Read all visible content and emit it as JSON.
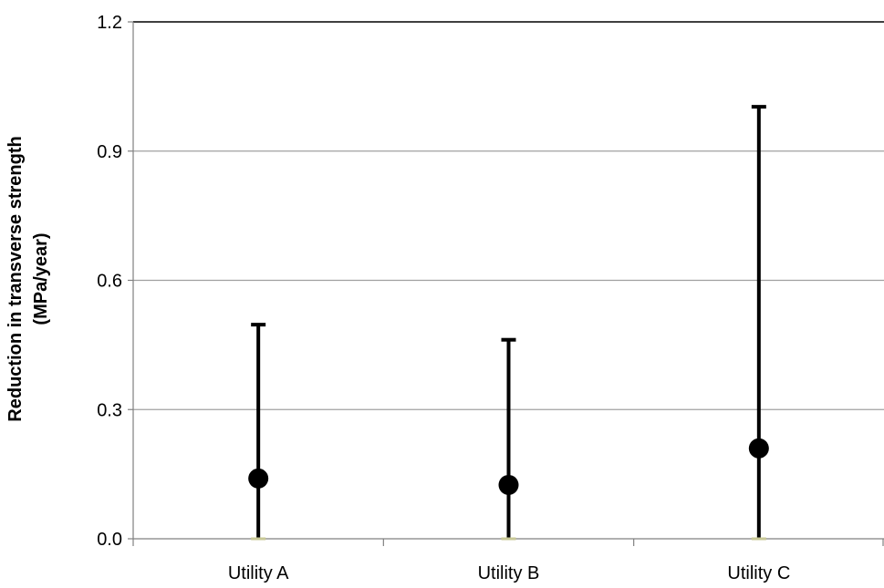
{
  "chart_data": {
    "type": "scatter",
    "title": "",
    "xlabel": "",
    "ylabel": "Reduction in transverse strength",
    "ylabel_unit": "(MPa/year)",
    "categories": [
      "Utility A",
      "Utility B",
      "Utility C"
    ],
    "series": [
      {
        "values": [
          0.14,
          0.125,
          0.21
        ],
        "lower": [
          0.0,
          0.0,
          0.0
        ],
        "upper": [
          0.497,
          0.462,
          1.003
        ]
      }
    ],
    "yticks": [
      "0.0",
      "0.3",
      "0.6",
      "0.9",
      "1.2"
    ],
    "ylim": [
      0,
      1.2
    ],
    "grid": true,
    "legend": "none",
    "colors": {
      "marker": "#000000",
      "errorbar": "#000000",
      "lower_cap": "#c8c896",
      "grid": "#a0a0a0",
      "axis": "#808080"
    }
  }
}
